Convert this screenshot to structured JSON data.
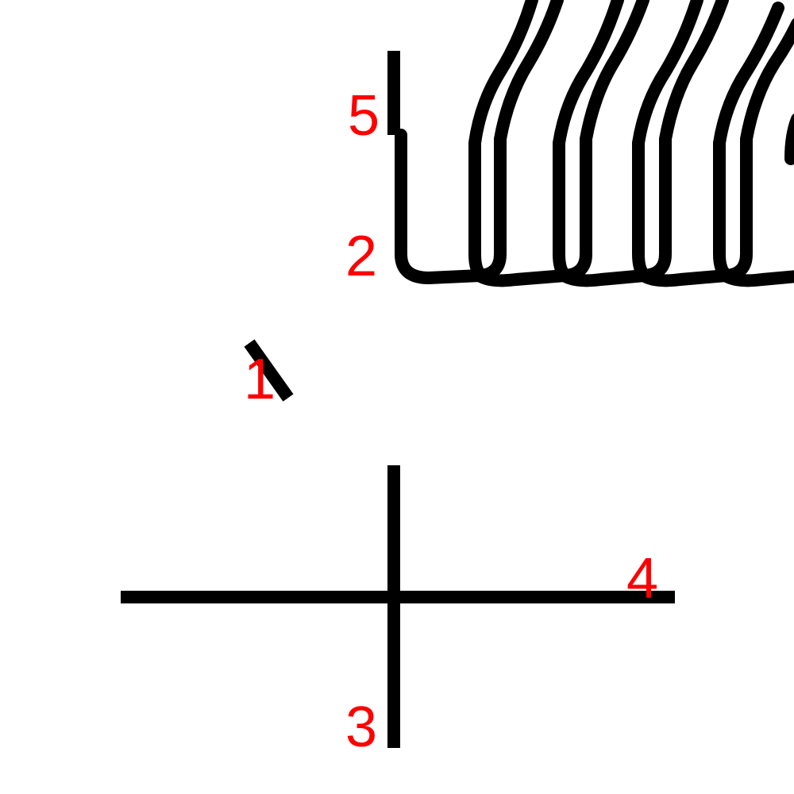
{
  "colors": {
    "background": "#ffffff",
    "stroke": "#000000",
    "label": "#ff0000"
  },
  "labels": {
    "l1": "1",
    "l2": "2",
    "l3": "3",
    "l4": "4",
    "l5": "5"
  }
}
